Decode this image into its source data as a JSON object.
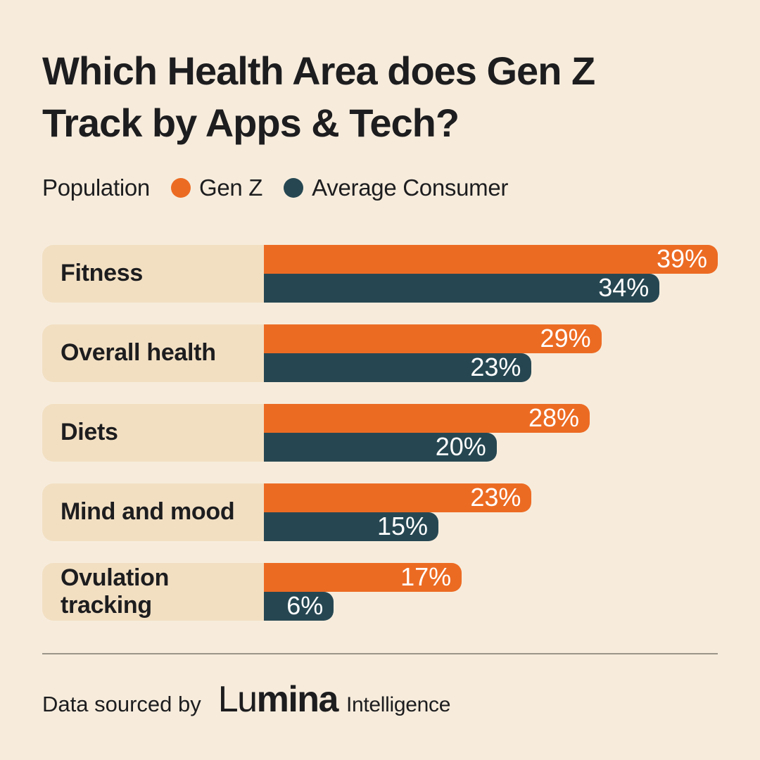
{
  "colors": {
    "background": "#F7ECDC",
    "label_box": "#F2DFC2",
    "genz": "#EC6B23",
    "avg_consumer": "#264752",
    "text": "#1D1D1F",
    "bar_value_text": "#FFFFFF",
    "divider": "#9B9488"
  },
  "title": {
    "line1": "Which Health Area does Gen Z",
    "line2": "Track by Apps & Tech?"
  },
  "legend": {
    "label": "Population",
    "items": [
      {
        "name": "Gen Z",
        "color": "#EC6B23"
      },
      {
        "name": "Average Consumer",
        "color": "#264752"
      }
    ]
  },
  "chart_data": {
    "type": "bar",
    "orientation": "horizontal",
    "title": "Which Health Area does Gen Z Track by Apps & Tech?",
    "categories": [
      "Fitness",
      "Overall health",
      "Diets",
      "Mind and mood",
      "Ovulation tracking"
    ],
    "series": [
      {
        "name": "Gen Z",
        "color": "#EC6B23",
        "values": [
          39,
          29,
          28,
          23,
          17
        ]
      },
      {
        "name": "Average Consumer",
        "color": "#264752",
        "values": [
          34,
          23,
          20,
          15,
          6
        ]
      }
    ],
    "value_suffix": "%",
    "xlim": [
      0,
      39
    ],
    "grid": false,
    "legend_position": "top",
    "value_labels": "inside-end"
  },
  "footer": {
    "prefix": "Data sourced by",
    "brand_light": "Lu",
    "brand_bold": "mina",
    "brand_suffix": "Intelligence"
  }
}
